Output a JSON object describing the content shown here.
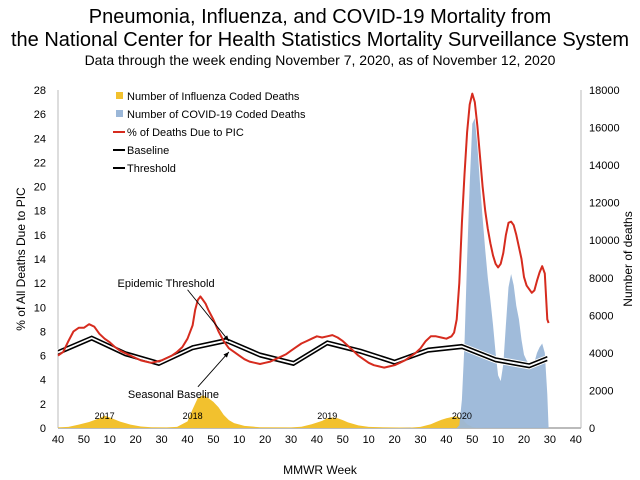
{
  "title_line1": "Pneumonia, Influenza, and COVID-19 Mortality from",
  "title_line2": "the National Center for Health Statistics Mortality Surveillance System",
  "subtitle": "Data through the week ending November 7, 2020, as of November 12, 2020",
  "chart_data": {
    "type": "area",
    "xlabel": "MMWR Week",
    "ylabel_left": "% of All Deaths Due to PIC",
    "ylabel_right": "Number of deaths",
    "ylim_left": [
      0,
      28
    ],
    "ylim_right": [
      0,
      18000
    ],
    "yticks_left": [
      0,
      2,
      4,
      6,
      8,
      10,
      12,
      14,
      16,
      18,
      20,
      22,
      24,
      26,
      28
    ],
    "yticks_right": [
      0,
      2000,
      4000,
      6000,
      8000,
      10000,
      12000,
      14000,
      16000,
      18000
    ],
    "x_index_range": [
      0,
      202
    ],
    "x_tick_labels": [
      "40",
      "50",
      "10",
      "20",
      "30",
      "40",
      "50",
      "10",
      "20",
      "30",
      "40",
      "50",
      "10",
      "20",
      "30",
      "40",
      "50",
      "10",
      "20",
      "30",
      "40"
    ],
    "year_labels": [
      {
        "text": "2017",
        "x_index": 18
      },
      {
        "text": "2018",
        "x_index": 52
      },
      {
        "text": "2019",
        "x_index": 104
      },
      {
        "text": "2020",
        "x_index": 156
      }
    ],
    "annotations": [
      {
        "text": "Epidemic Threshold",
        "x_index": 23,
        "y_left": 11.7,
        "arrow_to": [
          66,
          7.2
        ]
      },
      {
        "text": "Seasonal Baseline",
        "x_index": 27,
        "y_left": 2.5,
        "arrow_to": [
          66,
          6.3
        ]
      }
    ],
    "legend": {
      "placement": "top-left",
      "entries": [
        {
          "label": "Number of Influenza Coded Deaths",
          "color": "#F2C12E",
          "kind": "area"
        },
        {
          "label": "Number of COVID-19 Coded Deaths",
          "color": "#9BB7D8",
          "kind": "area"
        },
        {
          "label": "% of Deaths Due to PIC",
          "color": "#D62B1E",
          "kind": "line"
        },
        {
          "label": "Baseline",
          "color": "#000000",
          "kind": "line"
        },
        {
          "label": "Threshold",
          "color": "#000000",
          "kind": "line"
        }
      ]
    },
    "series": [
      {
        "name": "Number of Influenza Coded Deaths",
        "axis": "right",
        "points": [
          [
            0,
            30
          ],
          [
            4,
            60
          ],
          [
            8,
            180
          ],
          [
            12,
            320
          ],
          [
            16,
            520
          ],
          [
            18,
            660
          ],
          [
            20,
            560
          ],
          [
            24,
            340
          ],
          [
            28,
            180
          ],
          [
            32,
            80
          ],
          [
            36,
            40
          ],
          [
            42,
            30
          ],
          [
            46,
            60
          ],
          [
            50,
            350
          ],
          [
            52,
            1000
          ],
          [
            54,
            1600
          ],
          [
            56,
            1750
          ],
          [
            58,
            1600
          ],
          [
            60,
            1400
          ],
          [
            62,
            1100
          ],
          [
            64,
            700
          ],
          [
            66,
            420
          ],
          [
            68,
            260
          ],
          [
            72,
            110
          ],
          [
            78,
            40
          ],
          [
            90,
            30
          ],
          [
            94,
            70
          ],
          [
            98,
            200
          ],
          [
            102,
            380
          ],
          [
            104,
            520
          ],
          [
            106,
            560
          ],
          [
            108,
            520
          ],
          [
            110,
            420
          ],
          [
            112,
            300
          ],
          [
            116,
            140
          ],
          [
            120,
            60
          ],
          [
            128,
            30
          ],
          [
            136,
            20
          ],
          [
            140,
            60
          ],
          [
            144,
            200
          ],
          [
            146,
            320
          ],
          [
            148,
            430
          ],
          [
            150,
            520
          ],
          [
            152,
            580
          ],
          [
            154,
            620
          ],
          [
            156,
            500
          ],
          [
            158,
            200
          ],
          [
            160,
            60
          ],
          [
            162,
            20
          ],
          [
            170,
            0
          ],
          [
            202,
            0
          ]
        ]
      },
      {
        "name": "Number of COVID-19 Coded Deaths",
        "axis": "right",
        "points": [
          [
            154,
            0
          ],
          [
            155,
            150
          ],
          [
            156,
            1500
          ],
          [
            157,
            4500
          ],
          [
            158,
            9000
          ],
          [
            159,
            13000
          ],
          [
            160,
            16200
          ],
          [
            161,
            16500
          ],
          [
            162,
            15000
          ],
          [
            163,
            13000
          ],
          [
            164,
            11200
          ],
          [
            165,
            9500
          ],
          [
            166,
            8000
          ],
          [
            167,
            6800
          ],
          [
            168,
            5500
          ],
          [
            169,
            4000
          ],
          [
            170,
            2800
          ],
          [
            171,
            2500
          ],
          [
            172,
            3400
          ],
          [
            173,
            5500
          ],
          [
            174,
            7500
          ],
          [
            175,
            8200
          ],
          [
            176,
            7600
          ],
          [
            177,
            6500
          ],
          [
            178,
            5800
          ],
          [
            179,
            4700
          ],
          [
            180,
            3900
          ],
          [
            181,
            3600
          ],
          [
            182,
            3400
          ],
          [
            183,
            3300
          ],
          [
            184,
            3500
          ],
          [
            185,
            4000
          ],
          [
            186,
            4300
          ],
          [
            187,
            4500
          ],
          [
            188,
            4000
          ],
          [
            189,
            1800
          ],
          [
            189.5,
            0
          ]
        ]
      },
      {
        "name": "% of Deaths Due to PIC",
        "axis": "left",
        "points": [
          [
            0,
            6.0
          ],
          [
            2,
            6.3
          ],
          [
            4,
            7.2
          ],
          [
            6,
            8.0
          ],
          [
            8,
            8.3
          ],
          [
            10,
            8.3
          ],
          [
            12,
            8.6
          ],
          [
            14,
            8.4
          ],
          [
            16,
            7.8
          ],
          [
            18,
            7.4
          ],
          [
            20,
            7.1
          ],
          [
            22,
            6.7
          ],
          [
            24,
            6.4
          ],
          [
            26,
            6.2
          ],
          [
            28,
            6.0
          ],
          [
            30,
            5.8
          ],
          [
            32,
            5.6
          ],
          [
            34,
            5.5
          ],
          [
            36,
            5.4
          ],
          [
            38,
            5.5
          ],
          [
            40,
            5.6
          ],
          [
            42,
            5.8
          ],
          [
            44,
            6.0
          ],
          [
            46,
            6.3
          ],
          [
            48,
            6.7
          ],
          [
            50,
            7.4
          ],
          [
            52,
            8.5
          ],
          [
            53,
            9.8
          ],
          [
            54,
            10.6
          ],
          [
            55,
            10.9
          ],
          [
            56,
            10.6
          ],
          [
            57,
            10.3
          ],
          [
            58,
            9.8
          ],
          [
            60,
            9.0
          ],
          [
            62,
            8.0
          ],
          [
            64,
            7.2
          ],
          [
            66,
            6.6
          ],
          [
            68,
            6.3
          ],
          [
            70,
            6.0
          ],
          [
            72,
            5.7
          ],
          [
            74,
            5.5
          ],
          [
            76,
            5.4
          ],
          [
            78,
            5.3
          ],
          [
            80,
            5.4
          ],
          [
            82,
            5.5
          ],
          [
            84,
            5.7
          ],
          [
            86,
            5.9
          ],
          [
            88,
            6.1
          ],
          [
            90,
            6.4
          ],
          [
            92,
            6.7
          ],
          [
            94,
            7.0
          ],
          [
            96,
            7.2
          ],
          [
            98,
            7.4
          ],
          [
            100,
            7.6
          ],
          [
            102,
            7.5
          ],
          [
            104,
            7.6
          ],
          [
            106,
            7.7
          ],
          [
            108,
            7.5
          ],
          [
            110,
            7.2
          ],
          [
            112,
            6.8
          ],
          [
            114,
            6.4
          ],
          [
            116,
            6.0
          ],
          [
            118,
            5.7
          ],
          [
            120,
            5.4
          ],
          [
            122,
            5.2
          ],
          [
            124,
            5.1
          ],
          [
            126,
            5.0
          ],
          [
            128,
            5.1
          ],
          [
            130,
            5.2
          ],
          [
            132,
            5.4
          ],
          [
            134,
            5.6
          ],
          [
            136,
            5.9
          ],
          [
            138,
            6.2
          ],
          [
            140,
            6.6
          ],
          [
            142,
            7.2
          ],
          [
            144,
            7.6
          ],
          [
            146,
            7.6
          ],
          [
            148,
            7.5
          ],
          [
            150,
            7.4
          ],
          [
            152,
            7.6
          ],
          [
            153,
            7.9
          ],
          [
            154,
            9.0
          ],
          [
            155,
            12.0
          ],
          [
            156,
            17.0
          ],
          [
            157,
            21.0
          ],
          [
            158,
            24.5
          ],
          [
            159,
            26.8
          ],
          [
            160,
            27.7
          ],
          [
            161,
            27.0
          ],
          [
            162,
            25.0
          ],
          [
            163,
            22.5
          ],
          [
            164,
            20.0
          ],
          [
            165,
            18.0
          ],
          [
            166,
            16.5
          ],
          [
            167,
            15.3
          ],
          [
            168,
            14.3
          ],
          [
            169,
            13.6
          ],
          [
            170,
            13.3
          ],
          [
            171,
            13.6
          ],
          [
            172,
            14.5
          ],
          [
            173,
            16.0
          ],
          [
            174,
            17.0
          ],
          [
            175,
            17.1
          ],
          [
            176,
            16.8
          ],
          [
            177,
            16.0
          ],
          [
            178,
            15.0
          ],
          [
            179,
            14.0
          ],
          [
            180,
            12.5
          ],
          [
            181,
            11.8
          ],
          [
            182,
            11.5
          ],
          [
            183,
            11.2
          ],
          [
            184,
            11.4
          ],
          [
            185,
            12.2
          ],
          [
            186,
            12.9
          ],
          [
            187,
            13.4
          ],
          [
            188,
            12.8
          ],
          [
            189,
            9.0
          ],
          [
            189.5,
            8.7
          ]
        ]
      },
      {
        "name": "Baseline",
        "axis": "left",
        "points": [
          [
            0,
            6.1
          ],
          [
            13,
            7.3
          ],
          [
            26,
            6.0
          ],
          [
            39,
            5.2
          ],
          [
            52,
            6.5
          ],
          [
            65,
            7.1
          ],
          [
            78,
            5.9
          ],
          [
            91,
            5.2
          ],
          [
            104,
            6.9
          ],
          [
            117,
            6.2
          ],
          [
            130,
            5.3
          ],
          [
            143,
            6.3
          ],
          [
            156,
            6.6
          ],
          [
            169,
            5.5
          ],
          [
            182,
            5.0
          ],
          [
            189,
            5.6
          ]
        ]
      },
      {
        "name": "Threshold",
        "axis": "left",
        "points": [
          [
            0,
            6.4
          ],
          [
            13,
            7.6
          ],
          [
            26,
            6.3
          ],
          [
            39,
            5.5
          ],
          [
            52,
            6.8
          ],
          [
            65,
            7.4
          ],
          [
            78,
            6.2
          ],
          [
            91,
            5.5
          ],
          [
            104,
            7.2
          ],
          [
            117,
            6.5
          ],
          [
            130,
            5.6
          ],
          [
            143,
            6.6
          ],
          [
            156,
            6.9
          ],
          [
            169,
            5.8
          ],
          [
            182,
            5.3
          ],
          [
            189,
            5.9
          ]
        ]
      }
    ]
  }
}
